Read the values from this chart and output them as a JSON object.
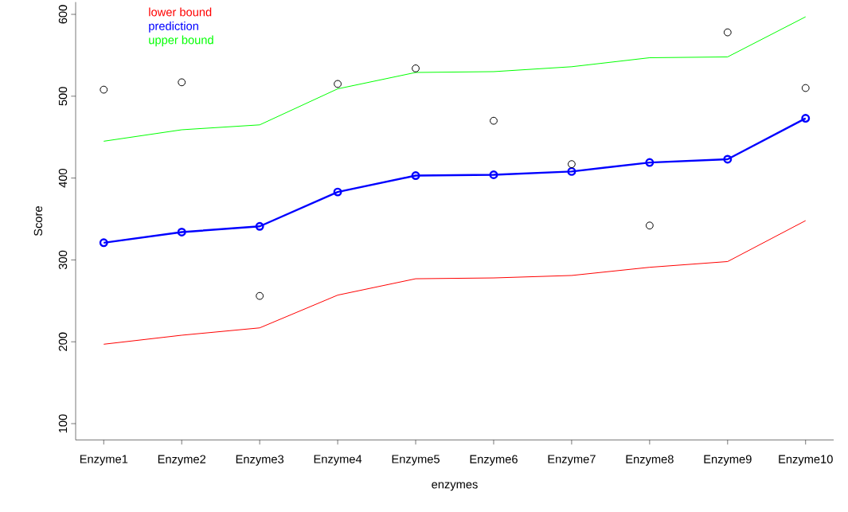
{
  "chart_data": {
    "type": "line",
    "xlabel": "enzymes",
    "ylabel": "Score",
    "categories": [
      "Enzyme1",
      "Enzyme2",
      "Enzyme3",
      "Enzyme4",
      "Enzyme5",
      "Enzyme6",
      "Enzyme7",
      "Enzyme8",
      "Enzyme9",
      "Enzyme10"
    ],
    "series": [
      {
        "name": "lower bound",
        "color": "#ff0000",
        "marker": "none",
        "values": [
          197,
          208,
          217,
          257,
          277,
          278,
          281,
          291,
          298,
          348
        ]
      },
      {
        "name": "prediction",
        "color": "#0000ff",
        "marker": "circle",
        "values": [
          321,
          334,
          341,
          383,
          403,
          404,
          408,
          419,
          423,
          473
        ]
      },
      {
        "name": "upper bound",
        "color": "#00ff00",
        "marker": "none",
        "values": [
          445,
          459,
          465,
          509,
          529,
          530,
          536,
          547,
          548,
          597
        ]
      },
      {
        "color": "#000000",
        "type": "scatter",
        "marker": "circle",
        "values": [
          508,
          517,
          256,
          515,
          534,
          470,
          417,
          342,
          578,
          510
        ]
      }
    ],
    "ylim": [
      80,
      615
    ],
    "yticks": [
      100,
      200,
      300,
      400,
      500,
      600
    ],
    "legend": "top left",
    "grid": false
  }
}
